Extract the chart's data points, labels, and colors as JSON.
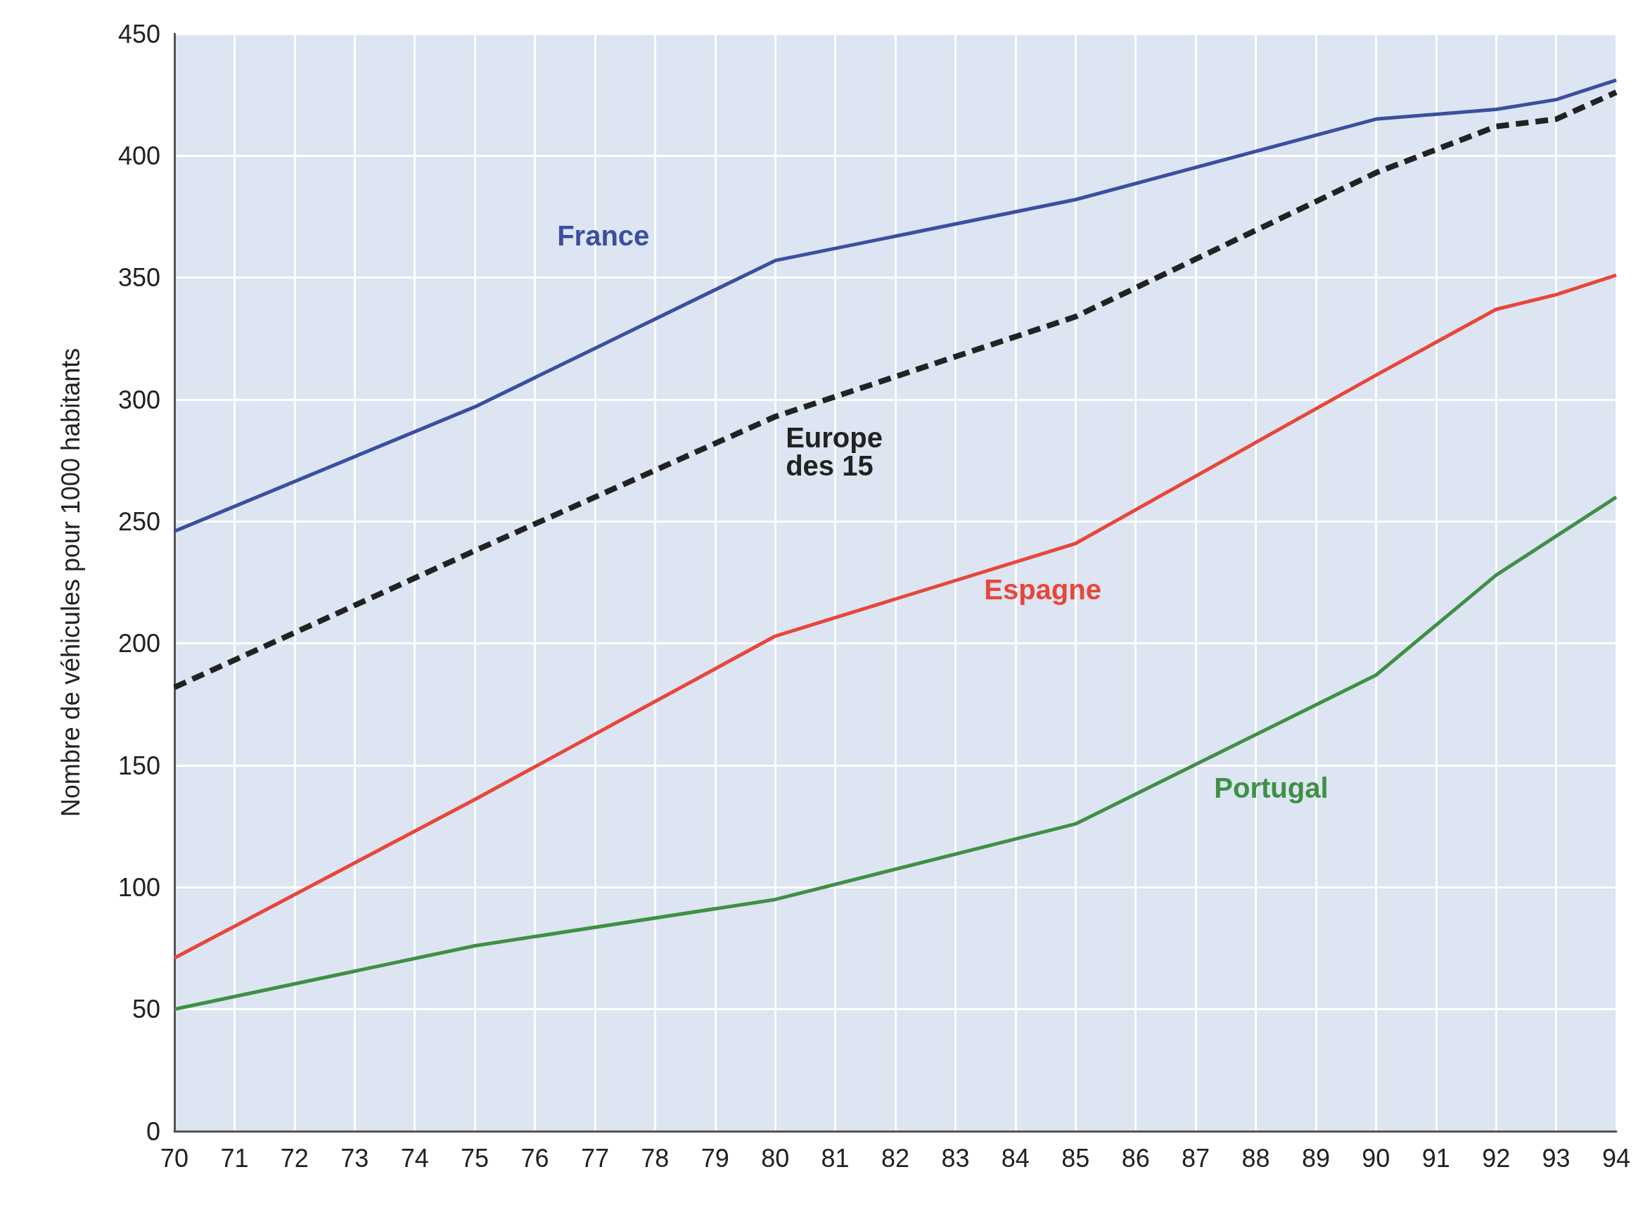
{
  "chart_data": {
    "type": "line",
    "ylabel": "Nombre de véhicules pour 1000 habitants",
    "x": [
      70,
      75,
      80,
      85,
      90,
      92,
      93,
      94
    ],
    "xlim": [
      70,
      94
    ],
    "xticks": [
      70,
      71,
      72,
      73,
      74,
      75,
      76,
      77,
      78,
      79,
      80,
      81,
      82,
      83,
      84,
      85,
      86,
      87,
      88,
      89,
      90,
      91,
      92,
      93,
      94
    ],
    "ylim": [
      0,
      450
    ],
    "yticks": [
      0,
      50,
      100,
      150,
      200,
      250,
      300,
      350,
      400,
      450
    ],
    "grid": true,
    "legend": false,
    "marker": "none",
    "series": [
      {
        "name": "France",
        "color": "#3a4fa0",
        "line_style": "solid",
        "values": [
          246,
          297,
          357,
          382,
          415,
          419,
          423,
          431
        ]
      },
      {
        "name": "Europe des 15",
        "color": "#222222",
        "line_style": "dashed",
        "values": [
          182,
          238,
          293,
          334,
          393,
          412,
          415,
          426
        ]
      },
      {
        "name": "Espagne",
        "color": "#e8463a",
        "line_style": "solid",
        "values": [
          71,
          136,
          203,
          241,
          310,
          337,
          343,
          351
        ]
      },
      {
        "name": "Portugal",
        "color": "#3f8f45",
        "line_style": "solid",
        "values": [
          50,
          76,
          95,
          126,
          187,
          228,
          244,
          260
        ]
      }
    ]
  }
}
